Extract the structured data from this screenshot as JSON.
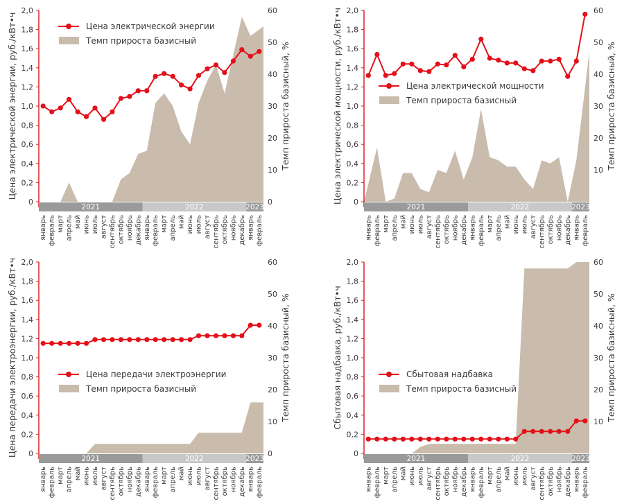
{
  "colors": {
    "price_line": "#e3101a",
    "growth_area": "#c9bcad",
    "year_band_dark": "#9a9a9a",
    "year_band_light": "#c8c8c8",
    "axis": "#d8232a",
    "text": "#3a3a3a"
  },
  "months": [
    "январь",
    "февраль",
    "март",
    "апрель",
    "май",
    "июнь",
    "июль",
    "август",
    "сентябрь",
    "октябрь",
    "ноябрь",
    "декабрь",
    "январь",
    "февраль",
    "март",
    "апрель",
    "май",
    "июнь",
    "июль",
    "август",
    "сентябрь",
    "октябрь",
    "ноябрь",
    "декабрь",
    "январь",
    "февраль"
  ],
  "years": [
    {
      "label": "2021",
      "start": 0,
      "end": 11
    },
    {
      "label": "2022",
      "start": 12,
      "end": 23
    },
    {
      "label": "2023",
      "start": 24,
      "end": 25
    }
  ],
  "chart_data": [
    {
      "type": "line",
      "ylabel": "Цена электрической энергии, руб./кВт•ч",
      "y2label": "Темп прироста базисный, %",
      "ylim": [
        0,
        2.0
      ],
      "y2lim": [
        0,
        60
      ],
      "yticks": [
        "0",
        "0,2",
        "0,4",
        "0,6",
        "0,8",
        "1,0",
        "1,2",
        "1,4",
        "1,6",
        "1,8",
        "2,0"
      ],
      "y2ticks": [
        "0",
        "10",
        "20",
        "30",
        "40",
        "50",
        "60"
      ],
      "legend_position": "top-left",
      "series": [
        {
          "name": "Цена электрической энергии",
          "kind": "line",
          "values": [
            1.0,
            0.94,
            0.98,
            1.07,
            0.94,
            0.89,
            0.98,
            0.86,
            0.94,
            1.08,
            1.1,
            1.16,
            1.16,
            1.31,
            1.34,
            1.31,
            1.22,
            1.18,
            1.32,
            1.39,
            1.43,
            1.35,
            1.47,
            1.59,
            1.52,
            1.57
          ]
        },
        {
          "name": "Темп прироста базисный",
          "kind": "area",
          "values": [
            0,
            0,
            0,
            6,
            0,
            0,
            0,
            0,
            0,
            7,
            9,
            15,
            16,
            31,
            34,
            30,
            22,
            18,
            31,
            38,
            43,
            34,
            46,
            58,
            52,
            55
          ]
        }
      ]
    },
    {
      "type": "line",
      "ylabel": "Цена электрической мощности, руб./кВт•ч",
      "y2label": "Темп прироста базисный, %",
      "ylim": [
        0,
        2.0
      ],
      "y2lim": [
        0,
        60
      ],
      "yticks": [
        "0",
        "0,2",
        "0,4",
        "0,6",
        "0,8",
        "1,0",
        "1,2",
        "1,4",
        "1,6",
        "1,8",
        "2,0"
      ],
      "y2ticks": [
        "10",
        "20",
        "30",
        "40",
        "50",
        "60"
      ],
      "legend_position": "center",
      "series": [
        {
          "name": "Цена электрической мощности",
          "kind": "line",
          "values": [
            1.32,
            1.54,
            1.32,
            1.34,
            1.44,
            1.44,
            1.37,
            1.36,
            1.44,
            1.43,
            1.53,
            1.41,
            1.49,
            1.7,
            1.5,
            1.48,
            1.45,
            1.45,
            1.39,
            1.37,
            1.47,
            1.47,
            1.49,
            1.31,
            1.47,
            1.96
          ]
        },
        {
          "name": "Темп прироста базисный",
          "kind": "area",
          "values": [
            0,
            17,
            0,
            1,
            9,
            9,
            4,
            3,
            10,
            9,
            16,
            7,
            14,
            29,
            14,
            13,
            11,
            11,
            7,
            4,
            13,
            12,
            14,
            0,
            13,
            47
          ]
        }
      ]
    },
    {
      "type": "line",
      "ylabel": "Цена передачи электроэнергии, руб./кВт•ч",
      "y2label": "Темп прироста базисный, %",
      "ylim": [
        0,
        2.0
      ],
      "y2lim": [
        0,
        60
      ],
      "yticks": [
        "0",
        "0,2",
        "0,4",
        "0,6",
        "0,8",
        "1,0",
        "1,2",
        "1,4",
        "1,6",
        "1,8",
        "2,0"
      ],
      "y2ticks": [
        "0",
        "10",
        "20",
        "30",
        "40",
        "50",
        "60"
      ],
      "legend_position": "center-left",
      "series": [
        {
          "name": "Цена передачи электроэнергии",
          "kind": "line",
          "values": [
            1.15,
            1.15,
            1.15,
            1.15,
            1.15,
            1.15,
            1.19,
            1.19,
            1.19,
            1.19,
            1.19,
            1.19,
            1.19,
            1.19,
            1.19,
            1.19,
            1.19,
            1.19,
            1.23,
            1.23,
            1.23,
            1.23,
            1.23,
            1.23,
            1.34,
            1.34
          ]
        },
        {
          "name": "Темп прироста базисный",
          "kind": "area",
          "values": [
            0,
            0,
            0,
            0,
            0,
            0,
            3,
            3,
            3,
            3,
            3,
            3,
            3,
            3,
            3,
            3,
            3,
            3,
            6.5,
            6.5,
            6.5,
            6.5,
            6.5,
            6.5,
            16,
            16
          ]
        }
      ]
    },
    {
      "type": "line",
      "ylabel": "Сбытовая надбавка, руб./кВт•ч",
      "y2label": "Темп прироста базисный, %",
      "ylim": [
        0,
        2.0
      ],
      "y2lim": [
        0,
        60
      ],
      "yticks": [
        "0",
        "0,2",
        "0,4",
        "0,6",
        "0,8",
        "1,0",
        "1,2",
        "1,4",
        "1,6",
        "1,8",
        "2,0"
      ],
      "y2ticks": [
        "10",
        "20",
        "30",
        "40",
        "50",
        "60"
      ],
      "legend_position": "center-left",
      "series": [
        {
          "name": "Сбытовая надбавка",
          "kind": "line",
          "values": [
            0.15,
            0.15,
            0.15,
            0.15,
            0.15,
            0.15,
            0.15,
            0.15,
            0.15,
            0.15,
            0.15,
            0.15,
            0.15,
            0.15,
            0.15,
            0.15,
            0.15,
            0.15,
            0.23,
            0.23,
            0.23,
            0.23,
            0.23,
            0.23,
            0.34,
            0.34
          ]
        },
        {
          "name": "Темп прироста базисный",
          "kind": "area",
          "values": [
            0,
            0,
            0,
            0,
            0,
            0,
            2,
            3,
            3,
            3,
            3,
            3,
            3,
            3,
            3,
            3,
            3,
            3,
            58,
            58,
            58,
            58,
            58,
            58,
            61,
            61
          ]
        }
      ]
    }
  ]
}
